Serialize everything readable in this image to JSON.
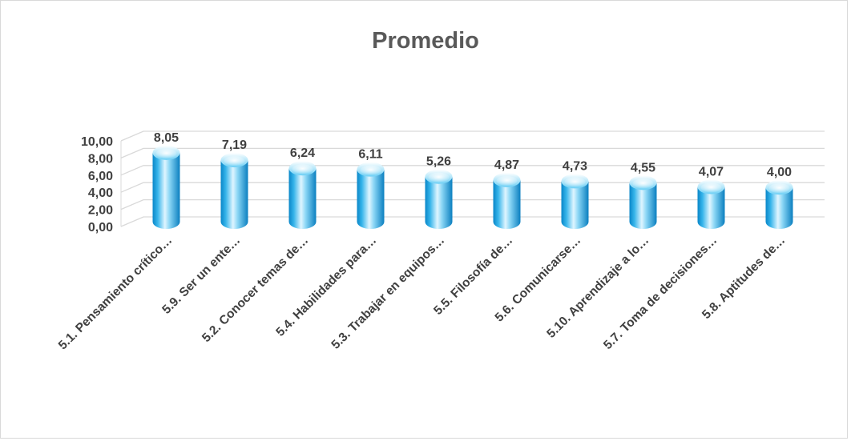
{
  "chart_data": {
    "type": "bar",
    "title": "Promedio",
    "categories": [
      "5.1. Pensamiento crítico…",
      "5.9. Ser un ente…",
      "5.2. Conocer temas de…",
      "5.4. Habilidades para…",
      "5.3. Trabajar en equipos…",
      "5.5. Filosofía de…",
      "5.6. Comunicarse…",
      "5.10. Aprendizaje a lo…",
      "5.7. Toma de decisiones…",
      "5.8. Aptitudes de…"
    ],
    "values": [
      8.05,
      7.19,
      6.24,
      6.11,
      5.26,
      4.87,
      4.73,
      4.55,
      4.07,
      4.0
    ],
    "value_labels": [
      "8,05",
      "7,19",
      "6,24",
      "6,11",
      "5,26",
      "4,87",
      "4,73",
      "4,55",
      "4,07",
      "4,00"
    ],
    "y_ticks": [
      "0,00",
      "2,00",
      "4,00",
      "6,00",
      "8,00",
      "10,00"
    ],
    "ylim": [
      0,
      10
    ],
    "grid": true,
    "legend": "none",
    "style": "3d-cylinder",
    "colors": {
      "bar_light": "#e6f7ff",
      "bar_mid": "#5cc8f0",
      "bar_dark": "#0a7fc0",
      "grid": "#d9d9d9"
    }
  }
}
